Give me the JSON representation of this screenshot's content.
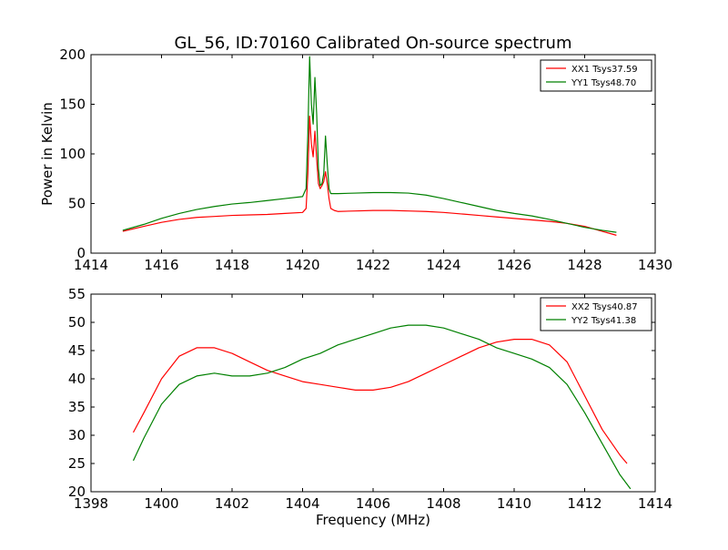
{
  "figure": {
    "title": "GL_56, ID:70160 Calibrated On-source spectrum"
  },
  "chart_data": [
    {
      "type": "line",
      "title": "GL_56, ID:70160 Calibrated On-source spectrum",
      "xlabel": "",
      "ylabel": "Power in Kelvin",
      "xlim": [
        1414,
        1430
      ],
      "ylim": [
        0,
        200
      ],
      "xticks": [
        1414,
        1416,
        1418,
        1420,
        1422,
        1424,
        1426,
        1428,
        1430
      ],
      "yticks": [
        0,
        50,
        100,
        150,
        200
      ],
      "grid": false,
      "legend_position": "top-right",
      "series": [
        {
          "name": "XX1 Tsys37.59",
          "color": "#ff0000",
          "x": [
            1414.9,
            1415.5,
            1416.0,
            1416.5,
            1417.0,
            1417.5,
            1418.0,
            1418.5,
            1419.0,
            1419.5,
            1420.0,
            1420.1,
            1420.15,
            1420.2,
            1420.25,
            1420.3,
            1420.35,
            1420.4,
            1420.45,
            1420.5,
            1420.55,
            1420.6,
            1420.65,
            1420.7,
            1420.75,
            1420.8,
            1420.9,
            1421.0,
            1421.5,
            1422.0,
            1422.5,
            1423.0,
            1423.5,
            1424.0,
            1424.5,
            1425.0,
            1425.5,
            1426.0,
            1426.5,
            1427.0,
            1427.5,
            1428.0,
            1428.5,
            1428.9
          ],
          "values": [
            22,
            27,
            31,
            34,
            36,
            37,
            38,
            38.5,
            39,
            40,
            41,
            45,
            80,
            138,
            110,
            97,
            123,
            95,
            70,
            65,
            68,
            72,
            82,
            70,
            55,
            45,
            43,
            42,
            42.5,
            43,
            43,
            42.5,
            42,
            41,
            39.5,
            38,
            36.5,
            35,
            33.5,
            32,
            30,
            27,
            22,
            18
          ]
        },
        {
          "name": "YY1 Tsys48.70",
          "color": "#008000",
          "x": [
            1414.9,
            1415.5,
            1416.0,
            1416.5,
            1417.0,
            1417.5,
            1418.0,
            1418.5,
            1419.0,
            1419.5,
            1420.0,
            1420.1,
            1420.15,
            1420.2,
            1420.25,
            1420.3,
            1420.35,
            1420.4,
            1420.45,
            1420.5,
            1420.55,
            1420.6,
            1420.65,
            1420.7,
            1420.75,
            1420.8,
            1420.9,
            1421.0,
            1421.5,
            1422.0,
            1422.5,
            1423.0,
            1423.5,
            1424.0,
            1424.5,
            1425.0,
            1425.5,
            1426.0,
            1426.5,
            1427.0,
            1427.5,
            1428.0,
            1428.5,
            1428.9
          ],
          "values": [
            23,
            29,
            35,
            40,
            44,
            47,
            49.5,
            51,
            53,
            55,
            57,
            65,
            120,
            198,
            150,
            130,
            177,
            140,
            85,
            68,
            70,
            80,
            118,
            90,
            65,
            60,
            60,
            60,
            60.5,
            61,
            61,
            60.5,
            58.5,
            55,
            51,
            47,
            43,
            40,
            37.5,
            34,
            30,
            26,
            23,
            21
          ]
        }
      ]
    },
    {
      "type": "line",
      "title": "",
      "xlabel": "Frequency (MHz)",
      "ylabel": "",
      "xlim": [
        1398,
        1414
      ],
      "ylim": [
        20,
        55
      ],
      "xticks": [
        1398,
        1400,
        1402,
        1404,
        1406,
        1408,
        1410,
        1412,
        1414
      ],
      "yticks": [
        20,
        25,
        30,
        35,
        40,
        45,
        50,
        55
      ],
      "grid": false,
      "legend_position": "top-right",
      "series": [
        {
          "name": "XX2 Tsys40.87",
          "color": "#ff0000",
          "x": [
            1399.2,
            1399.5,
            1400.0,
            1400.5,
            1401.0,
            1401.5,
            1402.0,
            1402.5,
            1403.0,
            1403.5,
            1404.0,
            1404.5,
            1405.0,
            1405.5,
            1406.0,
            1406.5,
            1407.0,
            1407.5,
            1408.0,
            1408.5,
            1409.0,
            1409.5,
            1410.0,
            1410.5,
            1411.0,
            1411.5,
            1412.0,
            1412.5,
            1413.0,
            1413.2
          ],
          "values": [
            30.5,
            34,
            40,
            44,
            45.5,
            45.5,
            44.5,
            43,
            41.5,
            40.5,
            39.5,
            39,
            38.5,
            38,
            38,
            38.5,
            39.5,
            41,
            42.5,
            44,
            45.5,
            46.5,
            47,
            47,
            46,
            43,
            37,
            31,
            26.5,
            25
          ]
        },
        {
          "name": "YY2 Tsys41.38",
          "color": "#008000",
          "x": [
            1399.2,
            1399.5,
            1400.0,
            1400.5,
            1401.0,
            1401.5,
            1402.0,
            1402.5,
            1403.0,
            1403.5,
            1404.0,
            1404.5,
            1405.0,
            1405.5,
            1406.0,
            1406.5,
            1407.0,
            1407.5,
            1408.0,
            1408.5,
            1409.0,
            1409.5,
            1410.0,
            1410.5,
            1411.0,
            1411.5,
            1412.0,
            1412.5,
            1413.0,
            1413.3
          ],
          "values": [
            25.5,
            29.5,
            35.5,
            39,
            40.5,
            41,
            40.5,
            40.5,
            41,
            42,
            43.5,
            44.5,
            46,
            47,
            48,
            49,
            49.5,
            49.5,
            49,
            48,
            47,
            45.5,
            44.5,
            43.5,
            42,
            39,
            34,
            28.5,
            23,
            20.5
          ]
        }
      ]
    }
  ]
}
